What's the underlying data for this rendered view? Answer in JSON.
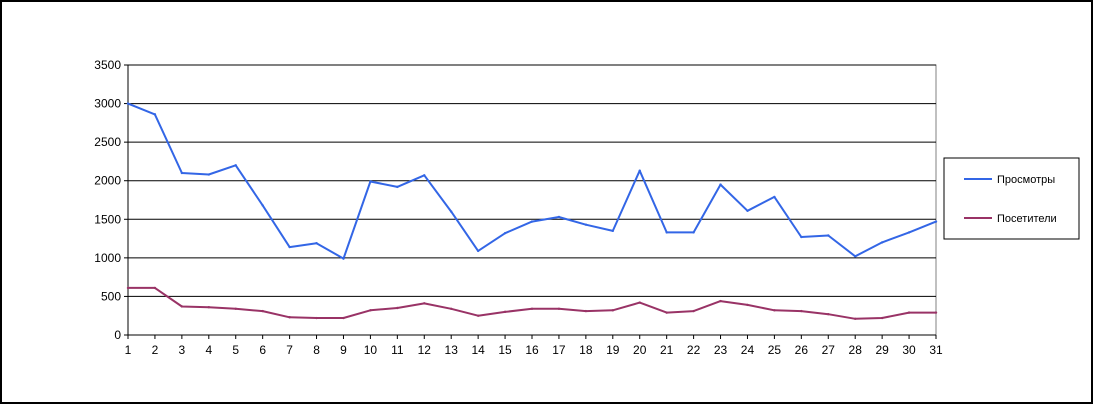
{
  "chart_data": {
    "type": "line",
    "x": [
      1,
      2,
      3,
      4,
      5,
      6,
      7,
      8,
      9,
      10,
      11,
      12,
      13,
      14,
      15,
      16,
      17,
      18,
      19,
      20,
      21,
      22,
      23,
      24,
      25,
      26,
      27,
      28,
      29,
      30,
      31
    ],
    "ylim": [
      0,
      3500
    ],
    "yticks": [
      0,
      500,
      1000,
      1500,
      2000,
      2500,
      3000,
      3500
    ],
    "grid": true,
    "legend_position": "right",
    "series": [
      {
        "name": "Просмотры",
        "color": "#3366e6",
        "values": [
          3000,
          2860,
          2100,
          2080,
          2200,
          1680,
          1140,
          1190,
          990,
          1990,
          1920,
          2070,
          1600,
          1090,
          1320,
          1470,
          1530,
          1430,
          1350,
          2130,
          1330,
          1330,
          1950,
          1610,
          1790,
          1270,
          1290,
          1020,
          1200,
          1330,
          1470
        ]
      },
      {
        "name": "Посетители",
        "color": "#993366",
        "values": [
          610,
          610,
          370,
          360,
          340,
          310,
          230,
          220,
          220,
          320,
          350,
          410,
          340,
          250,
          300,
          340,
          340,
          310,
          320,
          420,
          290,
          310,
          440,
          390,
          320,
          310,
          270,
          210,
          220,
          290,
          290
        ]
      }
    ]
  }
}
